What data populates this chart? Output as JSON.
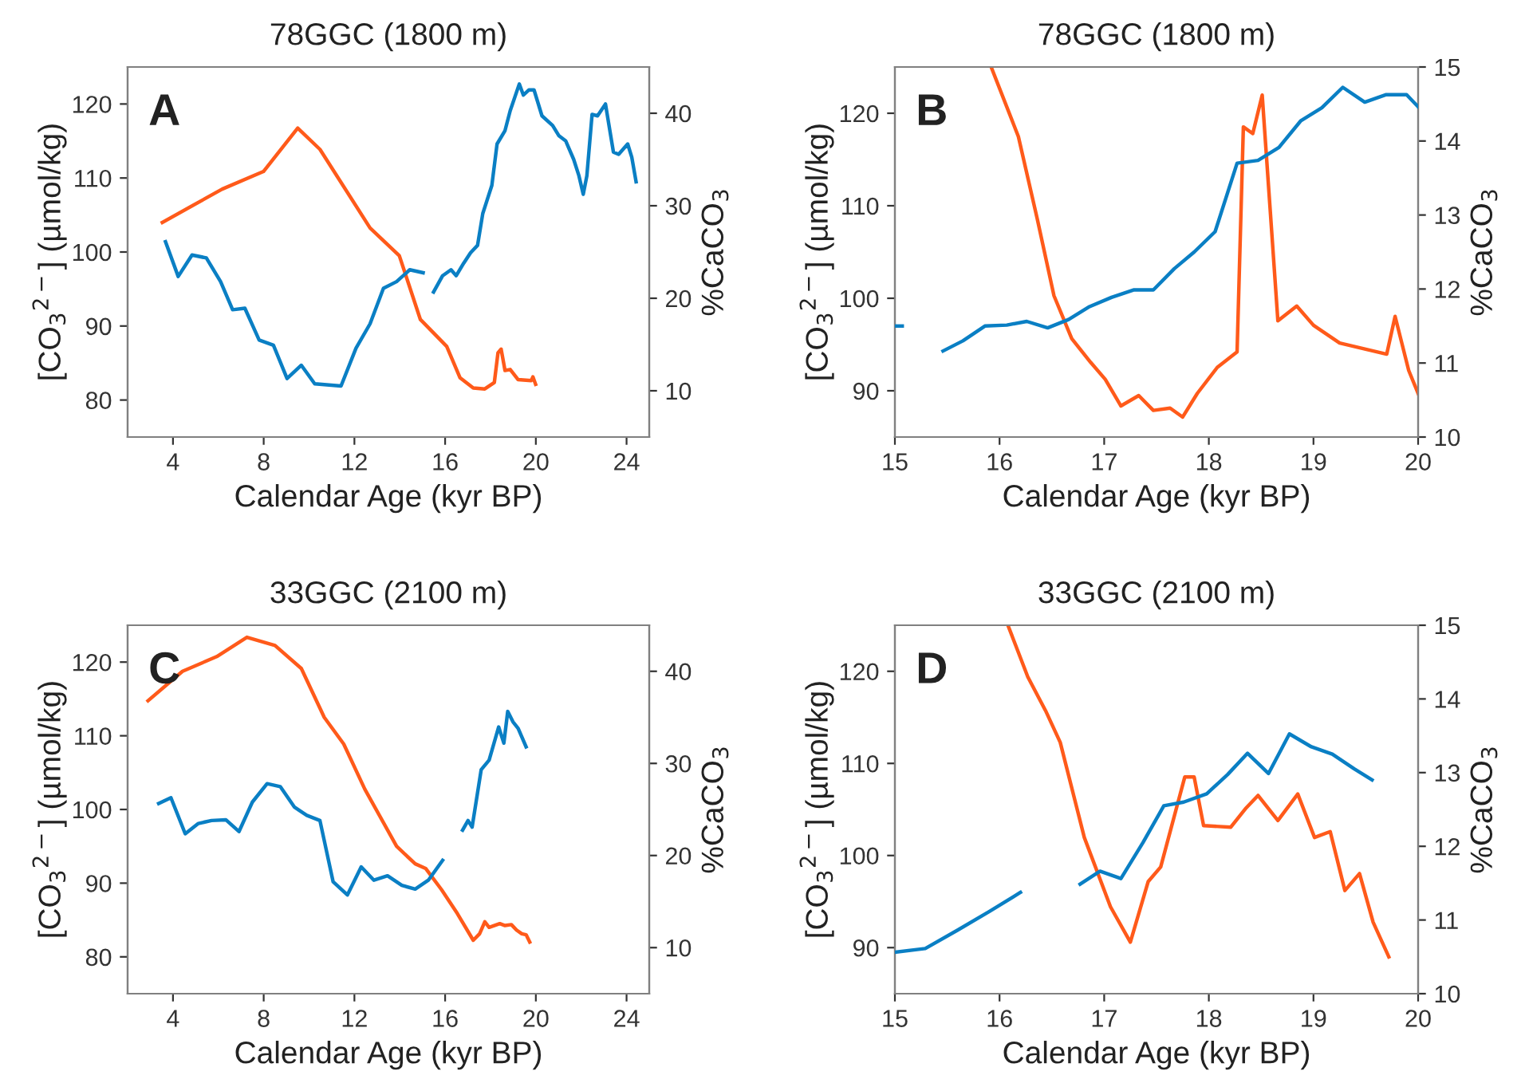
{
  "chart_data": [
    {
      "type": "line",
      "title": "78GGC (1800 m)",
      "xlabel": "Calendar Age (kyr BP)",
      "ylabel": "[CO$_{3}$$^{2−}$] (µmol/kg)",
      "y2label": "%CaCO$_{3}$",
      "annotations": [
        "A"
      ],
      "xlim": [
        2,
        25
      ],
      "xticks": [
        4,
        8,
        12,
        16,
        20,
        24
      ],
      "ylim": [
        75,
        125
      ],
      "yticks": [
        80,
        90,
        100,
        110,
        120
      ],
      "y2lim": [
        5,
        45
      ],
      "y2ticks": [
        10,
        20,
        30,
        40
      ],
      "series": [
        {
          "color": "#0a7fc4",
          "x": [
            3.67,
            4.23,
            4.84,
            5.47,
            6.1,
            6.63,
            7.17,
            7.8,
            8.43,
            9.03,
            9.66,
            10.25,
            11.41,
            12.07,
            12.69,
            13.28,
            13.86,
            14.44,
            15.03,
            15.25,
            15.49,
            15.89,
            16.26,
            16.49,
            16.82,
            17.12,
            17.43,
            17.66,
            18.06,
            18.29,
            18.64,
            18.87,
            19.27,
            19.45,
            19.69,
            19.92,
            20.27,
            20.74,
            21.02,
            21.32,
            21.67,
            21.9,
            22.09,
            22.25,
            22.48,
            22.72,
            23.07,
            23.42,
            23.65,
            24.05,
            24.23,
            24.42
          ],
          "values": [
            101.4,
            96.7,
            99.6,
            99.2,
            96.0,
            92.2,
            92.4,
            88.1,
            87.4,
            82.9,
            84.7,
            82.2,
            81.9,
            87.0,
            90.3,
            95.1,
            96.0,
            97.6,
            97.2,
            null,
            94.6,
            96.8,
            97.6,
            96.8,
            98.5,
            99.9,
            100.9,
            105.2,
            109.0,
            114.6,
            116.4,
            119.1,
            122.7,
            121.2,
            121.9,
            121.9,
            118.4,
            117.1,
            115.7,
            115.0,
            112.5,
            110.3,
            107.8,
            110.3,
            118.6,
            118.4,
            120.0,
            113.5,
            113.2,
            114.6,
            112.8,
            109.5
          ]
        },
        {
          "color": "#ff5a1a",
          "axis": "y2",
          "x": [
            3.53,
            6.17,
            7.99,
            9.5,
            10.48,
            12.69,
            13.98,
            14.91,
            16.07,
            16.66,
            17.24,
            17.75,
            18.17,
            18.33,
            18.47,
            18.64,
            18.87,
            19.22,
            19.8,
            19.87,
            19.99
          ],
          "values": [
            28.2,
            31.8,
            33.7,
            38.4,
            36.1,
            27.6,
            24.6,
            17.7,
            14.8,
            11.4,
            10.3,
            10.2,
            10.9,
            14.1,
            14.5,
            12.2,
            12.3,
            11.2,
            11.1,
            11.5,
            10.7
          ]
        }
      ]
    },
    {
      "type": "line",
      "title": "78GGC (1800 m)",
      "xlabel": "Calendar Age (kyr BP)",
      "ylabel": "[CO$_{3}$$^{2−}$] (µmol/kg)",
      "y2label": "%CaCO$_{3}$",
      "annotations": [
        "B"
      ],
      "xlim": [
        15,
        20
      ],
      "xticks": [
        15,
        16,
        17,
        18,
        19,
        20
      ],
      "ylim": [
        85,
        125
      ],
      "yticks": [
        90,
        100,
        110,
        120
      ],
      "y2lim": [
        10,
        15
      ],
      "y2ticks": [
        10,
        11,
        12,
        13,
        14,
        15
      ],
      "series": [
        {
          "color": "#0a7fc4",
          "x": [
            15.0,
            15.07
          ],
          "values": [
            97.0,
            97.0
          ]
        },
        {
          "color": "#0a7fc4",
          "x": [
            15.46,
            15.65,
            15.86,
            16.07,
            16.26,
            16.46,
            16.66,
            16.86,
            17.07,
            17.28,
            17.47,
            17.67,
            17.86,
            18.06,
            18.27,
            18.47,
            18.67,
            18.88,
            19.08,
            19.28,
            19.49,
            19.69,
            19.89,
            20.0
          ],
          "values": [
            94.3,
            95.4,
            97.0,
            97.1,
            97.5,
            96.8,
            97.7,
            99.1,
            100.1,
            100.9,
            100.9,
            103.2,
            105.0,
            107.2,
            114.6,
            114.9,
            116.3,
            119.2,
            120.6,
            122.8,
            121.2,
            122.0,
            122.0,
            120.7
          ]
        },
        {
          "color": "#ff5a1a",
          "axis": "y2",
          "x": [
            15.92,
            16.18,
            16.36,
            16.52,
            16.69,
            16.87,
            17.01,
            17.16,
            17.33,
            17.47,
            17.63,
            17.75,
            17.89,
            18.08,
            18.27,
            18.33,
            18.42,
            18.51,
            18.66,
            18.84,
            19.0,
            19.25,
            19.7,
            19.78,
            19.91,
            20.0
          ],
          "values": [
            15.0,
            14.06,
            12.95,
            11.91,
            11.33,
            11.01,
            10.78,
            10.42,
            10.56,
            10.36,
            10.39,
            10.27,
            10.59,
            10.94,
            11.15,
            14.19,
            14.1,
            14.62,
            11.57,
            11.77,
            11.51,
            11.27,
            11.12,
            11.63,
            10.9,
            10.59
          ]
        }
      ]
    },
    {
      "type": "line",
      "title": "33GGC (2100 m)",
      "xlabel": "Calendar Age (kyr BP)",
      "ylabel": "[CO$_{3}$$^{2−}$] (µmol/kg)",
      "y2label": "%CaCO$_{3}$",
      "annotations": [
        "C"
      ],
      "xlim": [
        2,
        25
      ],
      "xticks": [
        4,
        8,
        12,
        16,
        20,
        24
      ],
      "ylim": [
        75,
        125
      ],
      "yticks": [
        80,
        90,
        100,
        110,
        120
      ],
      "y2lim": [
        5,
        45
      ],
      "y2ticks": [
        10,
        20,
        30,
        40
      ],
      "series": [
        {
          "color": "#0a7fc4",
          "x": [
            3.37,
            3.91,
            4.54,
            5.12,
            5.7,
            6.33,
            6.91,
            7.5,
            8.15,
            8.73,
            9.36,
            9.9,
            10.48,
            11.06,
            11.69,
            12.3,
            12.86,
            13.46,
            14.09,
            14.68,
            15.26,
            15.89,
            16.3,
            16.77,
            17.01,
            17.19,
            17.59,
            17.94,
            18.36,
            18.59,
            18.76,
            18.99,
            19.22,
            19.57
          ],
          "values": [
            100.8,
            101.6,
            96.7,
            98.1,
            98.5,
            98.6,
            97.0,
            101.0,
            103.5,
            103.1,
            100.3,
            99.2,
            98.5,
            90.2,
            88.4,
            92.2,
            90.4,
            91.0,
            89.7,
            89.2,
            90.4,
            93.1,
            null,
            97.2,
            98.5,
            97.6,
            105.4,
            106.7,
            111.2,
            109.0,
            113.3,
            111.9,
            111.0,
            108.5
          ]
        },
        {
          "color": "#ff5a1a",
          "axis": "y2",
          "x": [
            2.9,
            4.42,
            5.93,
            7.26,
            8.5,
            9.66,
            10.67,
            11.53,
            12.46,
            13.86,
            14.68,
            15.14,
            15.84,
            16.54,
            17.24,
            17.52,
            17.75,
            17.94,
            18.41,
            18.64,
            18.92,
            19.15,
            19.38,
            19.57,
            19.73
          ],
          "values": [
            36.8,
            40.0,
            41.6,
            43.7,
            42.8,
            40.3,
            35.0,
            32.1,
            27.2,
            21.0,
            19.1,
            18.6,
            16.3,
            13.7,
            10.8,
            11.5,
            12.8,
            12.2,
            12.6,
            12.4,
            12.5,
            11.9,
            11.5,
            11.4,
            10.6
          ]
        }
      ]
    },
    {
      "type": "line",
      "title": "33GGC (2100 m)",
      "xlabel": "Calendar Age (kyr BP)",
      "ylabel": "[CO$_{3}$$^{2−}$] (µmol/kg)",
      "y2label": "%CaCO$_{3}$",
      "annotations": [
        "D"
      ],
      "xlim": [
        15,
        20
      ],
      "xticks": [
        15,
        16,
        17,
        18,
        19,
        20
      ],
      "ylim": [
        85,
        125
      ],
      "yticks": [
        90,
        100,
        110,
        120
      ],
      "y2lim": [
        10,
        15
      ],
      "y2ticks": [
        10,
        11,
        12,
        13,
        14,
        15
      ],
      "series": [
        {
          "color": "#0a7fc4",
          "x": [
            15.0,
            15.29,
            15.6,
            15.9,
            16.2,
            16.5,
            16.77,
            16.96,
            17.16,
            17.37,
            17.57,
            17.76,
            17.98,
            18.18,
            18.37,
            18.57,
            18.77,
            18.98,
            19.18,
            19.39,
            19.56
          ],
          "values": [
            89.5,
            89.9,
            91.9,
            93.9,
            96.0,
            null,
            96.9,
            98.3,
            97.5,
            101.4,
            105.4,
            105.8,
            106.7,
            108.8,
            111.1,
            108.9,
            113.2,
            111.8,
            111.0,
            109.4,
            108.2
          ]
        },
        {
          "color": "#ff5a1a",
          "axis": "y2",
          "x": [
            16.08,
            16.27,
            16.44,
            16.58,
            16.81,
            17.06,
            17.25,
            17.42,
            17.54,
            17.77,
            17.86,
            17.95,
            18.21,
            18.35,
            18.47,
            18.66,
            18.85,
            19.01,
            19.16,
            19.3,
            19.44,
            19.57,
            19.72
          ],
          "values": [
            15.0,
            14.3,
            13.84,
            13.41,
            12.12,
            11.18,
            10.7,
            11.52,
            11.72,
            12.94,
            12.94,
            12.28,
            12.26,
            12.51,
            12.69,
            12.35,
            12.71,
            12.12,
            12.2,
            11.4,
            11.63,
            10.97,
            10.5
          ]
        }
      ]
    }
  ]
}
